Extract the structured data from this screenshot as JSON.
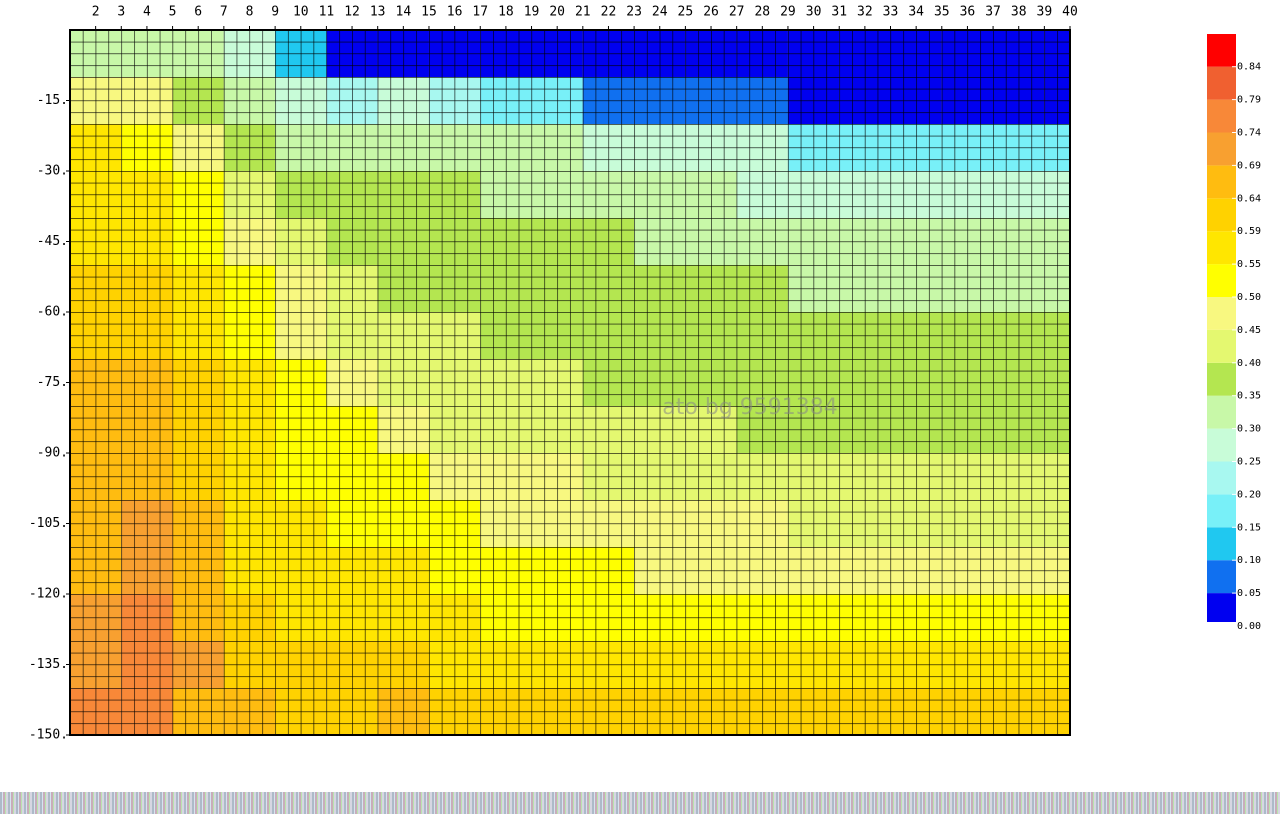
{
  "chart_data": {
    "type": "contour",
    "xlim": [
      1,
      40
    ],
    "ylim": [
      -150,
      0
    ],
    "xticks": [
      2,
      3,
      4,
      5,
      6,
      7,
      8,
      9,
      10,
      11,
      12,
      13,
      14,
      15,
      16,
      17,
      18,
      19,
      20,
      21,
      22,
      23,
      24,
      25,
      26,
      27,
      28,
      29,
      30,
      31,
      32,
      33,
      34,
      35,
      36,
      37,
      38,
      39,
      40
    ],
    "yticks": [
      {
        "value": -15,
        "label": "-15."
      },
      {
        "value": -30,
        "label": "-30."
      },
      {
        "value": -45,
        "label": "-45."
      },
      {
        "value": -60,
        "label": "-60."
      },
      {
        "value": -75,
        "label": "-75."
      },
      {
        "value": -90,
        "label": "-90."
      },
      {
        "value": -105,
        "label": "-105."
      },
      {
        "value": -120,
        "label": "-120."
      },
      {
        "value": -135,
        "label": "-135."
      },
      {
        "value": -150,
        "label": "-150."
      }
    ],
    "x": [
      2,
      4,
      6,
      8,
      10,
      12,
      14,
      16,
      18,
      20,
      22,
      24,
      26,
      28,
      30,
      32,
      34,
      36,
      38,
      40
    ],
    "y": [
      -5,
      -15,
      -25,
      -35,
      -45,
      -55,
      -65,
      -75,
      -85,
      -95,
      -105,
      -115,
      -125,
      -135,
      -145
    ],
    "z": [
      [
        0.3,
        0.3,
        0.3,
        0.28,
        0.1,
        0.02,
        0.02,
        0.02,
        0.02,
        0.02,
        0.02,
        0.02,
        0.02,
        0.02,
        0.02,
        0.02,
        0.02,
        0.02,
        0.02,
        0.02
      ],
      [
        0.45,
        0.45,
        0.35,
        0.3,
        0.25,
        0.2,
        0.25,
        0.2,
        0.15,
        0.15,
        0.05,
        0.05,
        0.05,
        0.05,
        0.03,
        0.03,
        0.03,
        0.03,
        0.03,
        0.03
      ],
      [
        0.55,
        0.5,
        0.45,
        0.35,
        0.33,
        0.32,
        0.31,
        0.31,
        0.3,
        0.3,
        0.25,
        0.25,
        0.25,
        0.25,
        0.18,
        0.18,
        0.18,
        0.18,
        0.18,
        0.18
      ],
      [
        0.57,
        0.55,
        0.5,
        0.4,
        0.37,
        0.36,
        0.35,
        0.35,
        0.34,
        0.33,
        0.32,
        0.3,
        0.3,
        0.28,
        0.27,
        0.26,
        0.25,
        0.25,
        0.25,
        0.25
      ],
      [
        0.58,
        0.57,
        0.53,
        0.45,
        0.4,
        0.38,
        0.37,
        0.37,
        0.36,
        0.36,
        0.35,
        0.34,
        0.33,
        0.32,
        0.31,
        0.3,
        0.3,
        0.3,
        0.3,
        0.3
      ],
      [
        0.6,
        0.6,
        0.55,
        0.5,
        0.45,
        0.4,
        0.38,
        0.38,
        0.37,
        0.37,
        0.36,
        0.36,
        0.35,
        0.35,
        0.34,
        0.33,
        0.33,
        0.33,
        0.32,
        0.32
      ],
      [
        0.62,
        0.62,
        0.57,
        0.52,
        0.48,
        0.42,
        0.4,
        0.4,
        0.39,
        0.38,
        0.38,
        0.38,
        0.37,
        0.37,
        0.36,
        0.36,
        0.35,
        0.35,
        0.35,
        0.35
      ],
      [
        0.65,
        0.66,
        0.6,
        0.55,
        0.5,
        0.46,
        0.43,
        0.41,
        0.4,
        0.4,
        0.39,
        0.39,
        0.38,
        0.38,
        0.37,
        0.37,
        0.37,
        0.37,
        0.36,
        0.37
      ],
      [
        0.65,
        0.67,
        0.62,
        0.57,
        0.52,
        0.5,
        0.46,
        0.44,
        0.43,
        0.42,
        0.41,
        0.41,
        0.4,
        0.39,
        0.39,
        0.39,
        0.38,
        0.38,
        0.38,
        0.38
      ],
      [
        0.66,
        0.68,
        0.63,
        0.58,
        0.54,
        0.52,
        0.5,
        0.47,
        0.46,
        0.45,
        0.44,
        0.44,
        0.43,
        0.42,
        0.41,
        0.41,
        0.4,
        0.4,
        0.4,
        0.4
      ],
      [
        0.67,
        0.69,
        0.64,
        0.58,
        0.55,
        0.54,
        0.52,
        0.5,
        0.49,
        0.48,
        0.47,
        0.46,
        0.46,
        0.45,
        0.44,
        0.44,
        0.43,
        0.43,
        0.43,
        0.43
      ],
      [
        0.68,
        0.71,
        0.65,
        0.58,
        0.56,
        0.55,
        0.55,
        0.52,
        0.51,
        0.5,
        0.5,
        0.49,
        0.49,
        0.48,
        0.48,
        0.47,
        0.47,
        0.47,
        0.47,
        0.47
      ],
      [
        0.7,
        0.74,
        0.67,
        0.6,
        0.58,
        0.57,
        0.57,
        0.55,
        0.54,
        0.53,
        0.53,
        0.52,
        0.52,
        0.52,
        0.51,
        0.51,
        0.51,
        0.51,
        0.51,
        0.51
      ],
      [
        0.72,
        0.77,
        0.72,
        0.62,
        0.6,
        0.6,
        0.62,
        0.58,
        0.57,
        0.56,
        0.56,
        0.56,
        0.56,
        0.56,
        0.55,
        0.55,
        0.55,
        0.55,
        0.55,
        0.55
      ],
      [
        0.74,
        0.76,
        0.68,
        0.64,
        0.62,
        0.63,
        0.66,
        0.6,
        0.6,
        0.59,
        0.59,
        0.59,
        0.59,
        0.59,
        0.59,
        0.59,
        0.59,
        0.59,
        0.59,
        0.59
      ]
    ],
    "levels": [
      {
        "value": 0,
        "label": "0.00"
      },
      {
        "value": 0.05,
        "label": "0.05"
      },
      {
        "value": 0.1,
        "label": "0.10"
      },
      {
        "value": 0.15,
        "label": "0.15"
      },
      {
        "value": 0.2,
        "label": "0.20"
      },
      {
        "value": 0.25,
        "label": "0.25"
      },
      {
        "value": 0.3,
        "label": "0.30"
      },
      {
        "value": 0.35,
        "label": "0.35"
      },
      {
        "value": 0.4,
        "label": "0.40"
      },
      {
        "value": 0.45,
        "label": "0.45"
      },
      {
        "value": 0.5,
        "label": "0.50"
      },
      {
        "value": 0.55,
        "label": "0.55"
      },
      {
        "value": 0.59,
        "label": "0.59"
      },
      {
        "value": 0.64,
        "label": "0.64"
      },
      {
        "value": 0.69,
        "label": "0.69"
      },
      {
        "value": 0.74,
        "label": "0.74"
      },
      {
        "value": 0.79,
        "label": "0.79"
      },
      {
        "value": 0.84,
        "label": "0.84"
      }
    ],
    "colors": [
      "#0000f0",
      "#1070f0",
      "#20c8f0",
      "#78f0f8",
      "#a8f8f0",
      "#c8fcd8",
      "#c8f8a8",
      "#b4e650",
      "#e4f870",
      "#f8f880",
      "#ffff00",
      "#ffe600",
      "#ffd200",
      "#ffbc10",
      "#f8a030",
      "#f88838",
      "#f06030",
      "#ff0000"
    ],
    "watermark": "ato bg 9591384"
  }
}
